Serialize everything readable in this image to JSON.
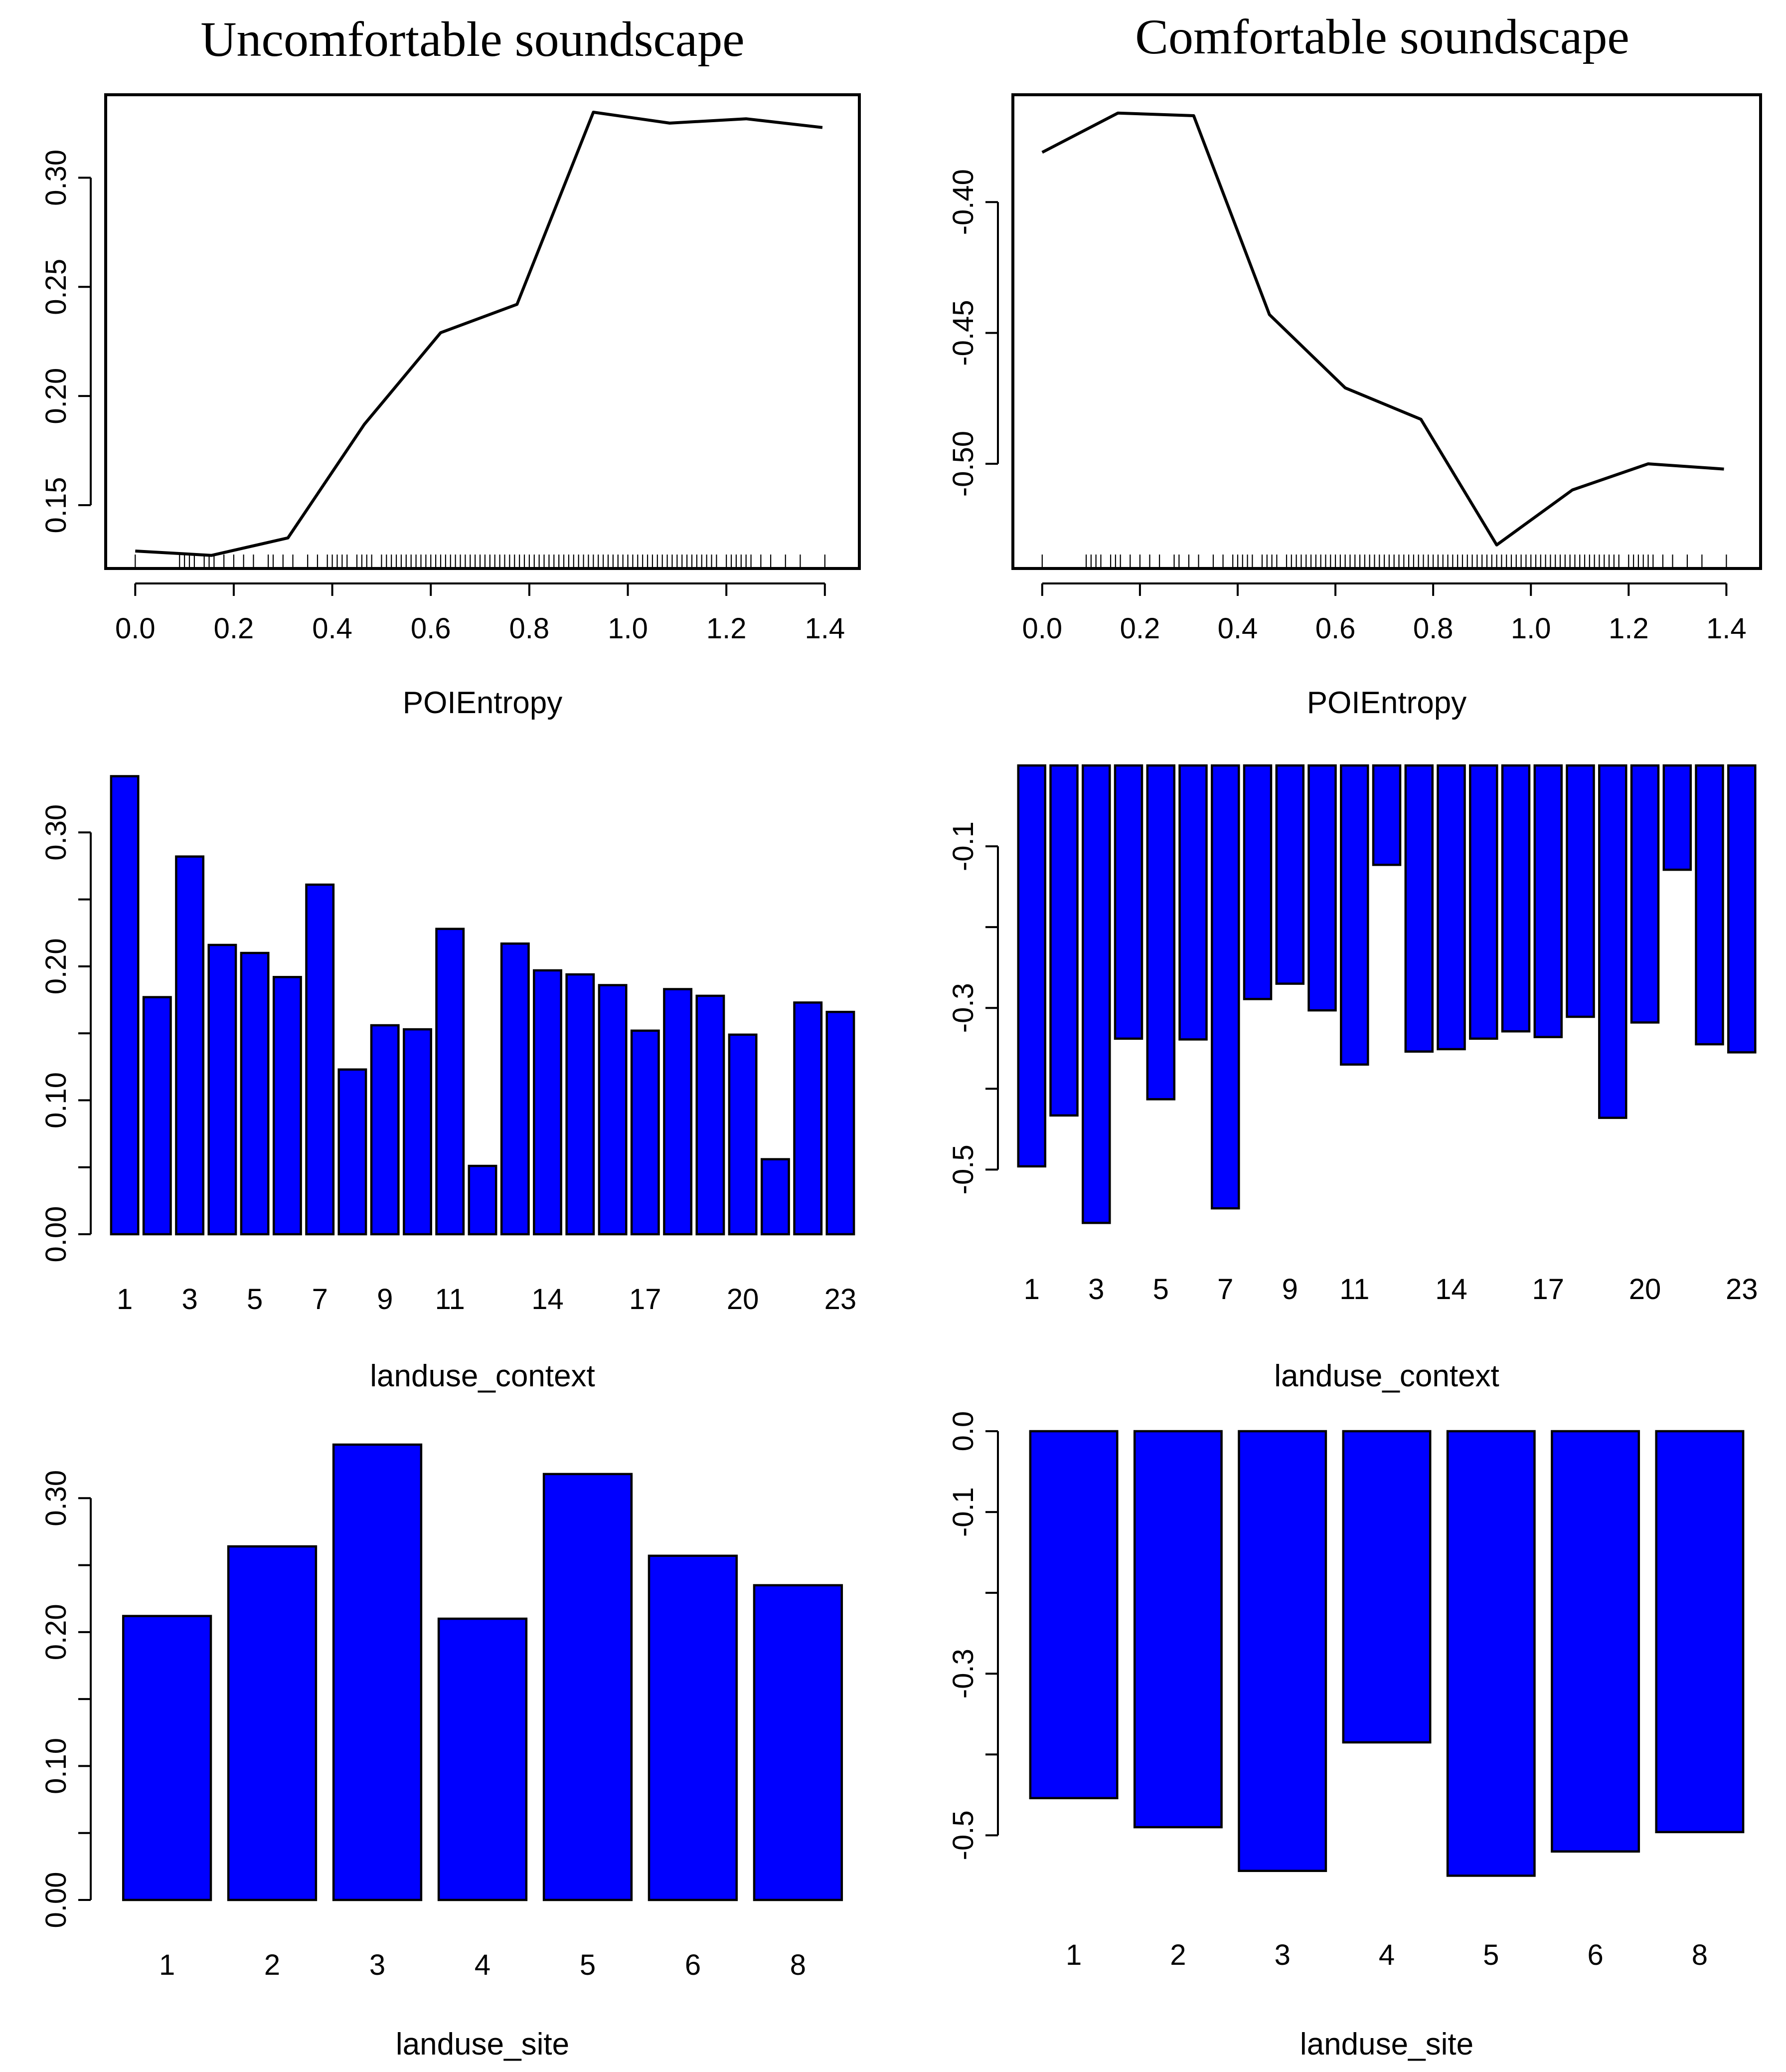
{
  "columns": {
    "left_title": "Uncomfortable soundscape",
    "right_title": "Comfortable soundscape"
  },
  "colors": {
    "bar_fill": "#0000FF",
    "line": "#000000",
    "axis": "#000000"
  },
  "chart_data": [
    {
      "id": "poi-uncomfortable",
      "type": "line",
      "title": "Uncomfortable soundscape",
      "xlabel": "POIEntropy",
      "ylabel": "",
      "x": [
        0.0,
        0.155,
        0.31,
        0.465,
        0.62,
        0.775,
        0.93,
        1.085,
        1.24,
        1.395
      ],
      "y": [
        0.129,
        0.127,
        0.135,
        0.187,
        0.229,
        0.242,
        0.33,
        0.325,
        0.327,
        0.323
      ],
      "xlim": [
        -0.06,
        1.47
      ],
      "ylim": [
        0.121,
        0.338
      ],
      "xticks": [
        0.0,
        0.2,
        0.4,
        0.6,
        0.8,
        1.0,
        1.2,
        1.4
      ],
      "xtick_labels": [
        "0.0",
        "0.2",
        "0.4",
        "0.6",
        "0.8",
        "1.0",
        "1.2",
        "1.4"
      ],
      "yticks": [
        0.15,
        0.2,
        0.25,
        0.3
      ],
      "ytick_labels": [
        "0.15",
        "0.20",
        "0.25",
        "0.30"
      ],
      "rug": true,
      "grid": false
    },
    {
      "id": "poi-comfortable",
      "type": "line",
      "title": "Comfortable soundscape",
      "xlabel": "POIEntropy",
      "ylabel": "",
      "x": [
        0.0,
        0.155,
        0.31,
        0.465,
        0.62,
        0.775,
        0.93,
        1.085,
        1.24,
        1.395
      ],
      "y": [
        -0.381,
        -0.366,
        -0.367,
        -0.443,
        -0.471,
        -0.483,
        -0.531,
        -0.51,
        -0.5,
        -0.502
      ],
      "xlim": [
        -0.06,
        1.47
      ],
      "ylim": [
        -0.54,
        -0.359
      ],
      "xticks": [
        0.0,
        0.2,
        0.4,
        0.6,
        0.8,
        1.0,
        1.2,
        1.4
      ],
      "xtick_labels": [
        "0.0",
        "0.2",
        "0.4",
        "0.6",
        "0.8",
        "1.0",
        "1.2",
        "1.4"
      ],
      "yticks": [
        -0.5,
        -0.45,
        -0.4
      ],
      "ytick_labels": [
        "-0.50",
        "-0.45",
        "-0.40"
      ],
      "rug": true,
      "grid": false
    },
    {
      "id": "context-uncomfortable",
      "type": "bar",
      "xlabel": "landuse_context",
      "ylabel": "",
      "categories": [
        "1",
        "2",
        "3",
        "4",
        "5",
        "6",
        "7",
        "8",
        "9",
        "10",
        "11",
        "12",
        "13",
        "14",
        "15",
        "16",
        "17",
        "18",
        "19",
        "20",
        "21",
        "22",
        "23"
      ],
      "values": [
        0.342,
        0.177,
        0.282,
        0.216,
        0.21,
        0.192,
        0.261,
        0.123,
        0.156,
        0.153,
        0.228,
        0.051,
        0.217,
        0.197,
        0.194,
        0.186,
        0.152,
        0.183,
        0.178,
        0.149,
        0.056,
        0.173,
        0.166
      ],
      "shown_category_labels": [
        "1",
        "3",
        "5",
        "7",
        "9",
        "11",
        "14",
        "17",
        "20",
        "23"
      ],
      "ylim": [
        0,
        0.35
      ],
      "yticks": [
        0.0,
        0.05,
        0.1,
        0.15,
        0.2,
        0.25,
        0.3
      ],
      "ytick_labels": [
        "0.00",
        "",
        "0.10",
        "",
        "0.20",
        "",
        "0.30"
      ]
    },
    {
      "id": "context-comfortable",
      "type": "bar",
      "xlabel": "landuse_context",
      "ylabel": "",
      "categories": [
        "1",
        "2",
        "3",
        "4",
        "5",
        "6",
        "7",
        "8",
        "9",
        "10",
        "11",
        "12",
        "13",
        "14",
        "15",
        "16",
        "17",
        "18",
        "19",
        "20",
        "21",
        "22",
        "23"
      ],
      "values": [
        -0.496,
        -0.433,
        -0.566,
        -0.338,
        -0.413,
        -0.339,
        -0.548,
        -0.289,
        -0.27,
        -0.303,
        -0.37,
        -0.123,
        -0.354,
        -0.351,
        -0.338,
        -0.329,
        -0.336,
        -0.311,
        -0.436,
        -0.318,
        -0.129,
        -0.345,
        -0.355
      ],
      "shown_category_labels": [
        "1",
        "3",
        "5",
        "7",
        "9",
        "11",
        "14",
        "17",
        "20",
        "23"
      ],
      "ylim": [
        -0.58,
        0.0
      ],
      "yticks": [
        -0.5,
        -0.4,
        -0.3,
        -0.2,
        -0.1
      ],
      "ytick_labels": [
        "-0.5",
        "",
        "-0.3",
        "",
        "-0.1"
      ]
    },
    {
      "id": "site-uncomfortable",
      "type": "bar",
      "xlabel": "landuse_site",
      "ylabel": "",
      "categories": [
        "1",
        "2",
        "3",
        "4",
        "5",
        "6",
        "8"
      ],
      "values": [
        0.212,
        0.264,
        0.34,
        0.21,
        0.318,
        0.257,
        0.235
      ],
      "shown_category_labels": [
        "1",
        "2",
        "3",
        "4",
        "5",
        "6",
        "8"
      ],
      "ylim": [
        0,
        0.35
      ],
      "yticks": [
        0.0,
        0.05,
        0.1,
        0.15,
        0.2,
        0.25,
        0.3
      ],
      "ytick_labels": [
        "0.00",
        "",
        "0.10",
        "",
        "0.20",
        "",
        "0.30"
      ]
    },
    {
      "id": "site-comfortable",
      "type": "bar",
      "xlabel": "landuse_site",
      "ylabel": "",
      "categories": [
        "1",
        "2",
        "3",
        "4",
        "5",
        "6",
        "8"
      ],
      "values": [
        -0.454,
        -0.49,
        -0.544,
        -0.385,
        -0.55,
        -0.52,
        -0.496
      ],
      "shown_category_labels": [
        "1",
        "2",
        "3",
        "4",
        "5",
        "6",
        "8"
      ],
      "ylim": [
        -0.58,
        0.0
      ],
      "yticks": [
        -0.5,
        -0.4,
        -0.3,
        -0.2,
        -0.1,
        0.0
      ],
      "ytick_labels": [
        "-0.5",
        "",
        "-0.3",
        "",
        "-0.1",
        "0.0"
      ]
    }
  ]
}
